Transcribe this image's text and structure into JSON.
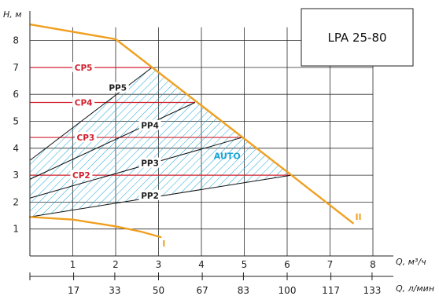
{
  "chart_data": {
    "type": "line",
    "model": "LPA 25-80",
    "y_axis_title": "H, м",
    "x_axis_title": "Q, м³/ч",
    "x2_axis_title": "Q, л/мин",
    "xlim": [
      0,
      8.4
    ],
    "ylim": [
      0,
      8.9
    ],
    "x_ticks": [
      1,
      2,
      3,
      4,
      5,
      6,
      7,
      8
    ],
    "y_ticks": [
      1,
      2,
      3,
      4,
      5,
      6,
      7,
      8
    ],
    "x2_ticks": [
      {
        "label": "17",
        "q": 1.02
      },
      {
        "label": "33",
        "q": 1.98
      },
      {
        "label": "50",
        "q": 3.0
      },
      {
        "label": "67",
        "q": 4.02
      },
      {
        "label": "83",
        "q": 4.98
      },
      {
        "label": "100",
        "q": 6.0
      },
      {
        "label": "117",
        "q": 7.02
      },
      {
        "label": "133",
        "q": 7.98
      }
    ],
    "colors": {
      "max_curve": "#f0a020",
      "constant_pressure": "#d0202e",
      "proportional": "#111111",
      "auto_hatch": "#1ba6d6"
    },
    "max_curve": {
      "label": "II",
      "x": [
        0,
        2.0,
        6.1,
        7.55
      ],
      "y": [
        8.6,
        8.05,
        3.0,
        1.2
      ]
    },
    "min_curve": {
      "label": "I",
      "x": [
        0,
        1.0,
        2.0,
        2.6,
        3.05
      ],
      "y": [
        1.45,
        1.35,
        1.1,
        0.9,
        0.7
      ]
    },
    "constant_pressure": [
      {
        "name": "CP2",
        "y": 3.0,
        "x_end": 6.1,
        "label_x": 1.2
      },
      {
        "name": "CP3",
        "y": 4.4,
        "x_end": 4.95,
        "label_x": 1.3
      },
      {
        "name": "CP4",
        "y": 5.7,
        "x_end": 3.85,
        "label_x": 1.25
      },
      {
        "name": "CP5",
        "y": 7.0,
        "x_end": 2.85,
        "label_x": 1.25
      }
    ],
    "proportional_pressure": [
      {
        "name": "PP2",
        "x": [
          0,
          6.1
        ],
        "y": [
          1.45,
          3.0
        ],
        "label_x": 2.8,
        "label_y": 2.25
      },
      {
        "name": "PP3",
        "x": [
          0,
          4.95
        ],
        "y": [
          2.15,
          4.4
        ],
        "label_x": 2.8,
        "label_y": 3.45
      },
      {
        "name": "PP4",
        "x": [
          0,
          3.85
        ],
        "y": [
          2.85,
          5.7
        ],
        "label_x": 2.8,
        "label_y": 4.85
      },
      {
        "name": "PP5",
        "x": [
          0,
          2.85
        ],
        "y": [
          3.55,
          7.0
        ],
        "label_x": 2.05,
        "label_y": 6.25
      }
    ],
    "auto_region": {
      "label": "AUTO",
      "label_x": 4.6,
      "label_y": 3.6
    },
    "grid": true
  }
}
